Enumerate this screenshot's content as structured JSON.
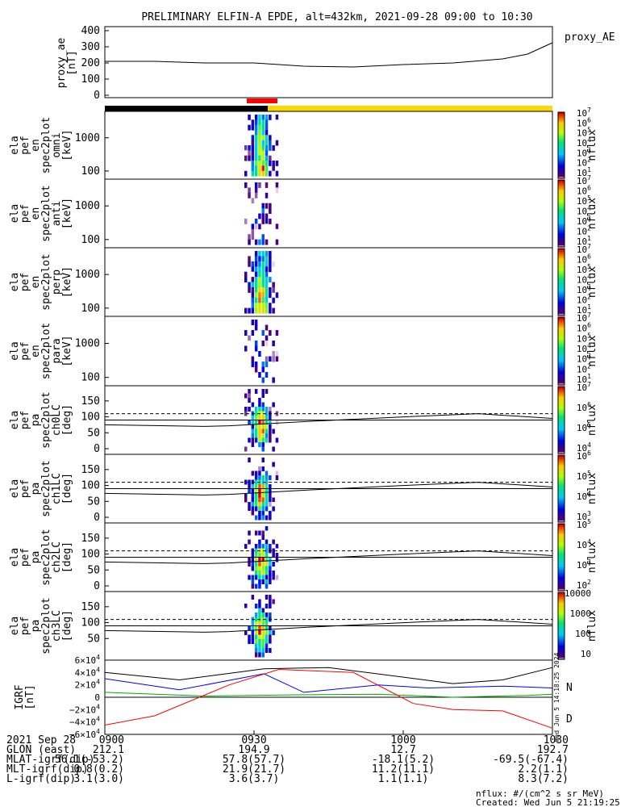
{
  "title": "PRELIMINARY ELFIN-A EPDE, alt=432km, 2021-09-28 09:00 to 10:30",
  "chart_data": [
    {
      "type": "line",
      "ylabel": [
        "proxy_ae",
        "[nT]"
      ],
      "legend": "proxy_AE",
      "ylim": [
        0,
        400
      ],
      "yticks": [
        "400",
        "300",
        "200",
        "100",
        "0"
      ],
      "x_minutes": [
        0,
        10,
        20,
        30,
        40,
        50,
        60,
        70,
        80,
        85,
        90
      ],
      "values": [
        210,
        210,
        200,
        200,
        180,
        175,
        190,
        200,
        225,
        255,
        325
      ]
    },
    {
      "type": "heatmap",
      "ylabel": [
        "ela",
        "pef",
        "en",
        "spec2plot",
        "omni",
        "[keV]"
      ],
      "yticks": [
        "1000",
        "100"
      ],
      "colorbar": {
        "label": "nflux",
        "ticks": [
          "10^7",
          "10^6",
          "10^5",
          "10^4",
          "10^3",
          "10^2",
          "10^1"
        ]
      }
    },
    {
      "type": "heatmap",
      "ylabel": [
        "ela",
        "pef",
        "en",
        "spec2plot",
        "anti",
        "[keV]"
      ],
      "yticks": [
        "1000",
        "100"
      ],
      "colorbar": {
        "label": "nflux",
        "ticks": [
          "10^7",
          "10^6",
          "10^5",
          "10^4",
          "10^3",
          "10^2",
          "10^1"
        ]
      }
    },
    {
      "type": "heatmap",
      "ylabel": [
        "ela",
        "pef",
        "en",
        "spec2plot",
        "perp",
        "[keV]"
      ],
      "yticks": [
        "1000",
        "100"
      ],
      "colorbar": {
        "label": "nflux",
        "ticks": [
          "10^7",
          "10^6",
          "10^5",
          "10^4",
          "10^3",
          "10^2",
          "10^1"
        ]
      }
    },
    {
      "type": "heatmap",
      "ylabel": [
        "ela",
        "pef",
        "en",
        "spec2plot",
        "para",
        "[keV]"
      ],
      "yticks": [
        "1000",
        "100"
      ],
      "colorbar": {
        "label": "nflux",
        "ticks": [
          "10^7",
          "10^6",
          "10^5",
          "10^4",
          "10^3",
          "10^2",
          "10^1"
        ]
      }
    },
    {
      "type": "heatmap",
      "ylabel": [
        "ela",
        "pef",
        "pa",
        "spec2plot",
        "ch0LC",
        "[deg]"
      ],
      "yticks": [
        "150",
        "100",
        "50",
        "0"
      ],
      "colorbar": {
        "label": "nflux",
        "ticks": [
          "10^7",
          "10^6",
          "10^5",
          "10^4"
        ]
      }
    },
    {
      "type": "heatmap",
      "ylabel": [
        "ela",
        "pef",
        "pa",
        "spec2plot",
        "ch1LC",
        "[deg]"
      ],
      "yticks": [
        "150",
        "100",
        "50",
        "0"
      ],
      "colorbar": {
        "label": "nflux",
        "ticks": [
          "10^6",
          "10^5",
          "10^4",
          "10^3"
        ]
      }
    },
    {
      "type": "heatmap",
      "ylabel": [
        "ela",
        "pef",
        "pa",
        "spec2plot",
        "ch2LC",
        "[deg]"
      ],
      "yticks": [
        "150",
        "100",
        "50",
        "0"
      ],
      "colorbar": {
        "label": "nflux",
        "ticks": [
          "10^5",
          "10^4",
          "10^3",
          "10^2"
        ]
      }
    },
    {
      "type": "heatmap",
      "ylabel": [
        "ela",
        "pef",
        "pa",
        "spec2plot",
        "ch3LC",
        "[deg]"
      ],
      "yticks": [
        "150",
        "100",
        "50"
      ],
      "colorbar": {
        "label": "nflux",
        "ticks": [
          "10000",
          "1000",
          "100",
          "10"
        ]
      }
    },
    {
      "type": "line",
      "ylabel": [
        "IGRF",
        "[nT]"
      ],
      "yticks": [
        "6×10^4",
        "4×10^4",
        "2×10^4",
        "0",
        "−2×10^4",
        "−4×10^4",
        "−6×10^4"
      ],
      "legend": [
        "N",
        "D"
      ],
      "side_stamp": "Wed Jun  5 14:18:25 2024",
      "series": [
        {
          "name": "N",
          "color": "#0000ff"
        },
        {
          "name": "D",
          "color": "#ff0000"
        }
      ]
    }
  ],
  "footer": {
    "rows": [
      [
        "2021 Sep 28",
        "0900",
        "0930",
        "1000",
        "1030"
      ],
      [
        "GLON (east)",
        "212.1",
        "194.9",
        "12.7",
        "192.7"
      ],
      [
        "MLAT-igrf(dip)",
        "56.1(-53.2)",
        "57.8(57.7)",
        "-18.1(5.2)",
        "-69.5(-67.4)"
      ],
      [
        "MLT-igrf(dip)",
        "0.8(0.2)",
        "21.9(21.7)",
        "11.2(11.1)",
        "2.2(1.1)"
      ],
      [
        "L-igrf(dip)",
        "3.1(3.0)",
        "3.6(3.7)",
        "1.1(1.1)",
        "8.3(7.2)"
      ]
    ],
    "units_note": "nflux: #/(cm^2 s sr MeV)",
    "created": "Created: Wed Jun  5 21:19:25 2024"
  }
}
